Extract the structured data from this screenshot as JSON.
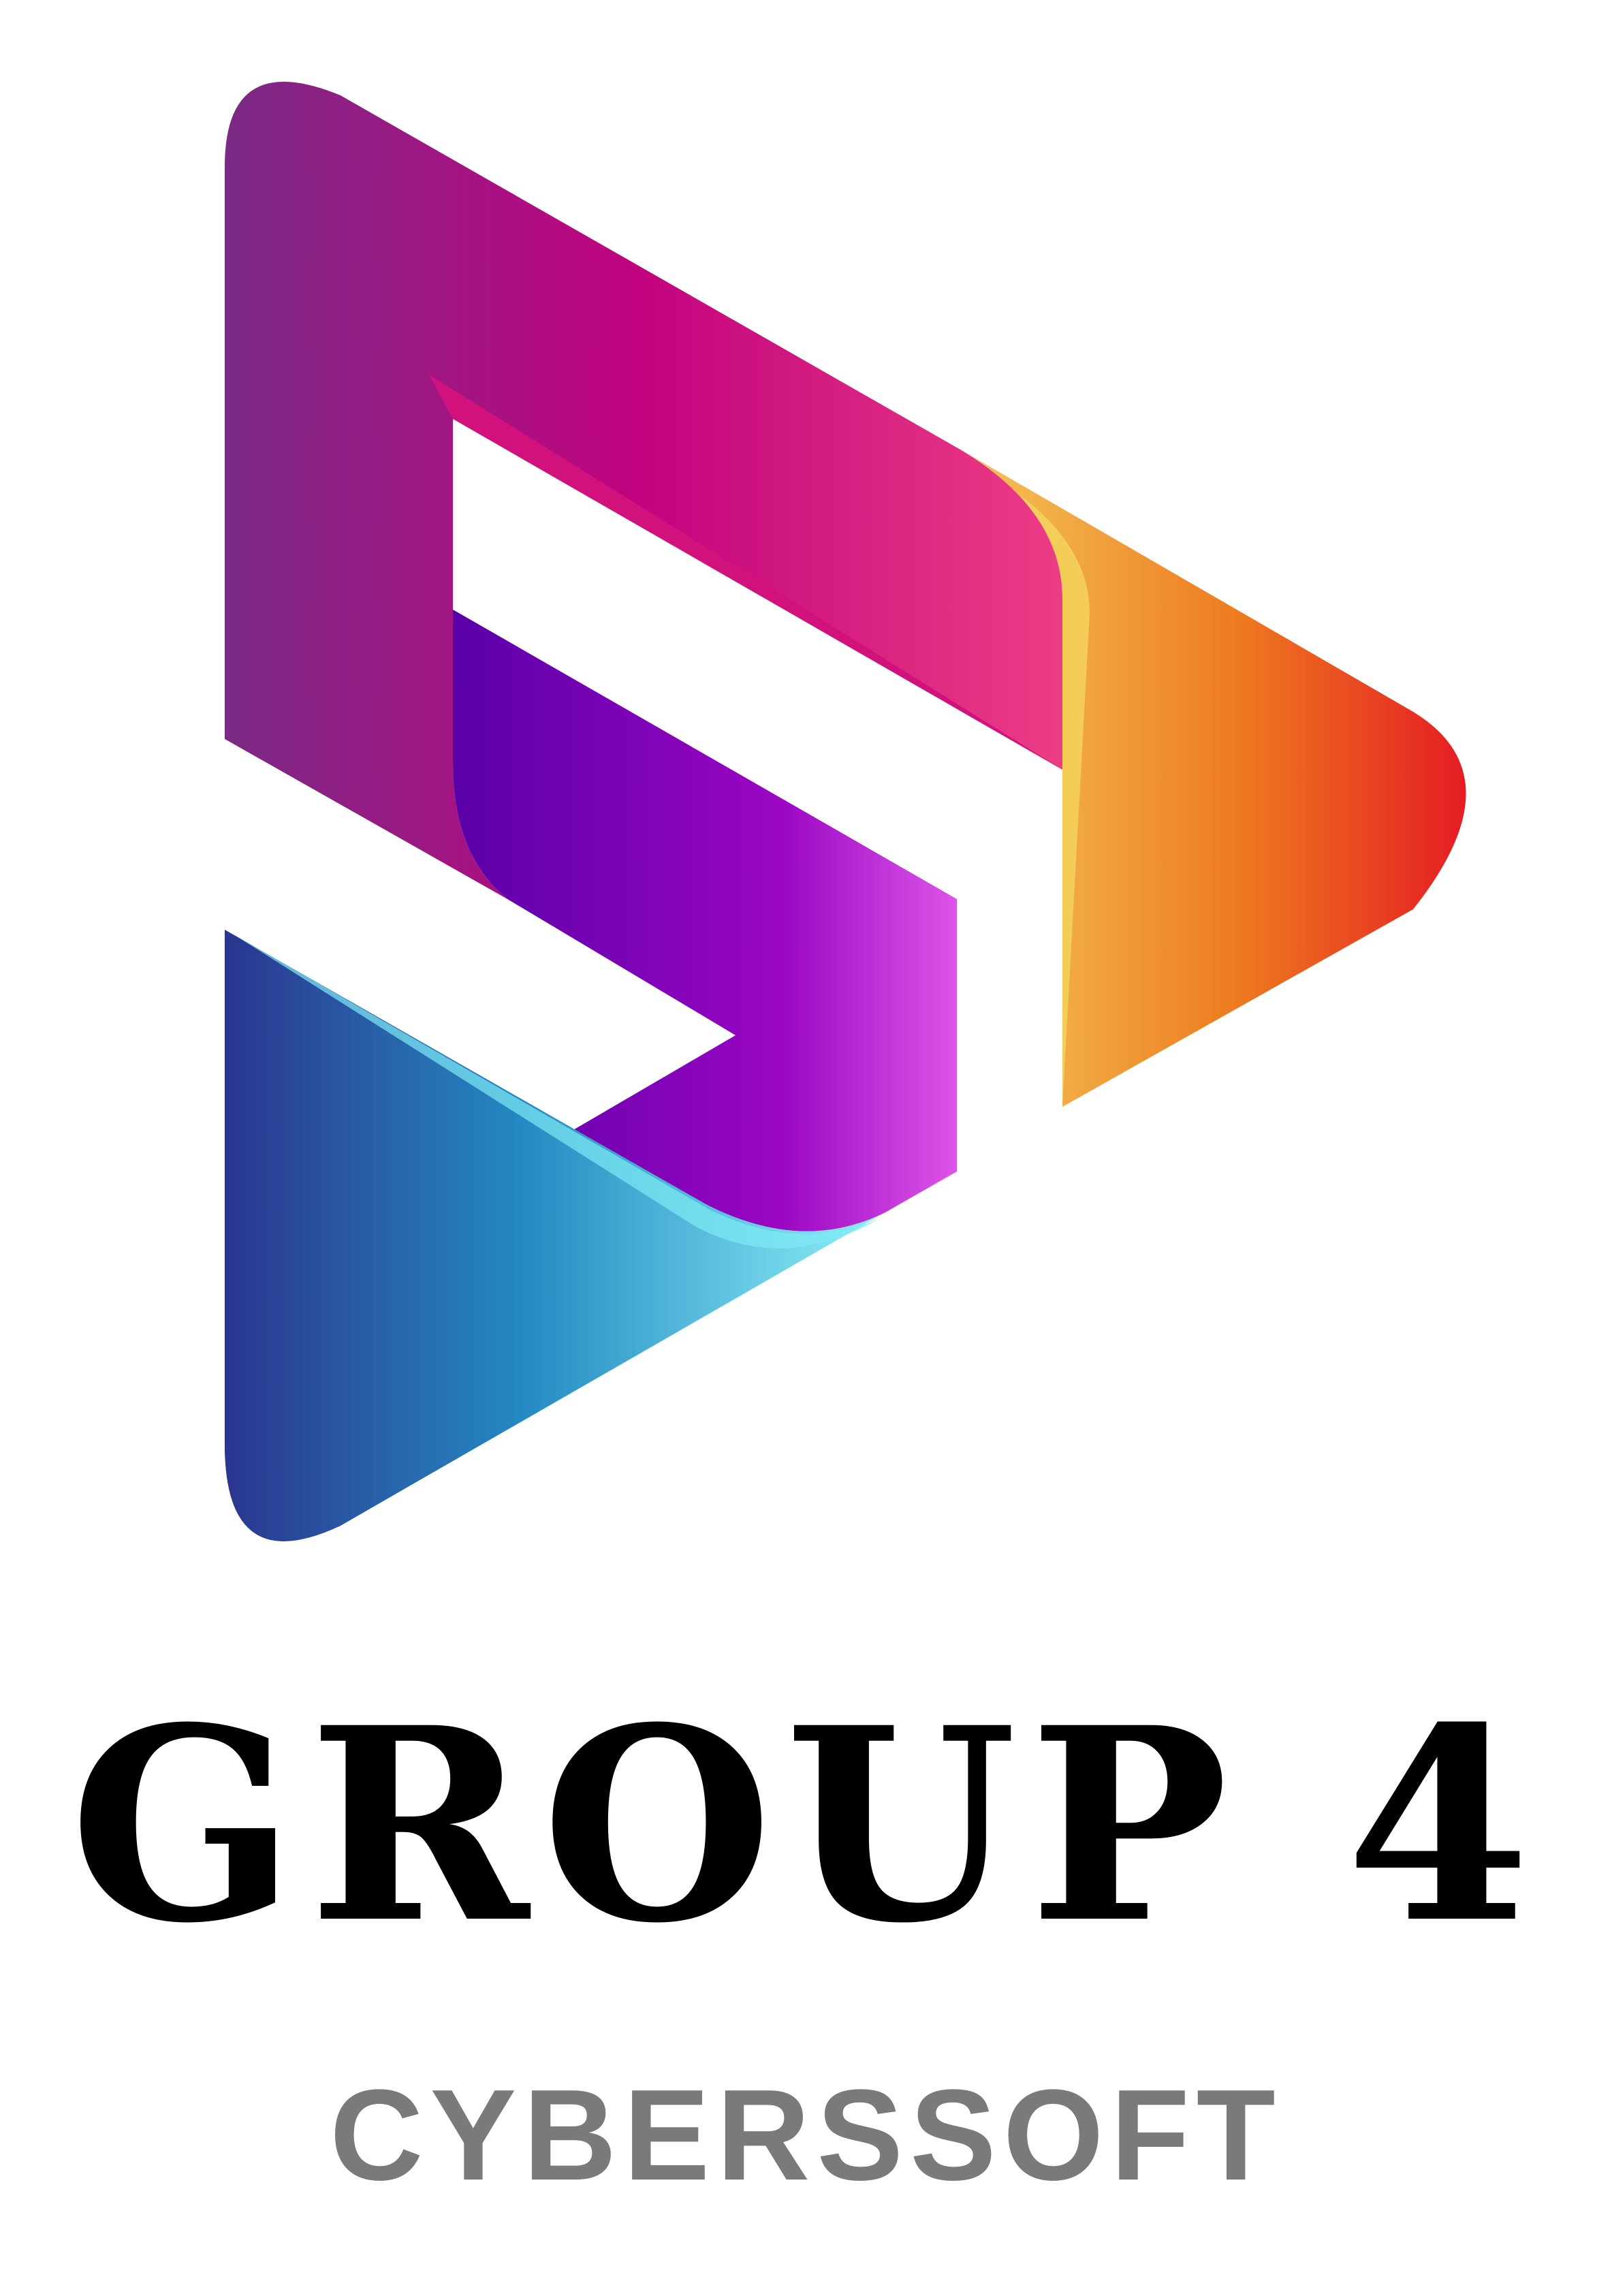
{
  "logo": {
    "icon": "play-s-logo-icon",
    "title": "GROUP 4",
    "subtitle": "CYBERSSOFT"
  },
  "colors": {
    "title": "#000000",
    "subtitle": "#7a7a7a",
    "magenta": "#d0127e",
    "pink": "#ea3a82",
    "purple": "#6a00b0",
    "violet": "#d44ee6",
    "orange": "#ee7a1f",
    "red": "#e51c23",
    "yellow": "#f3c75a",
    "navy": "#2b3a8f",
    "blue": "#2488c2",
    "cyan": "#8ef0f6"
  }
}
